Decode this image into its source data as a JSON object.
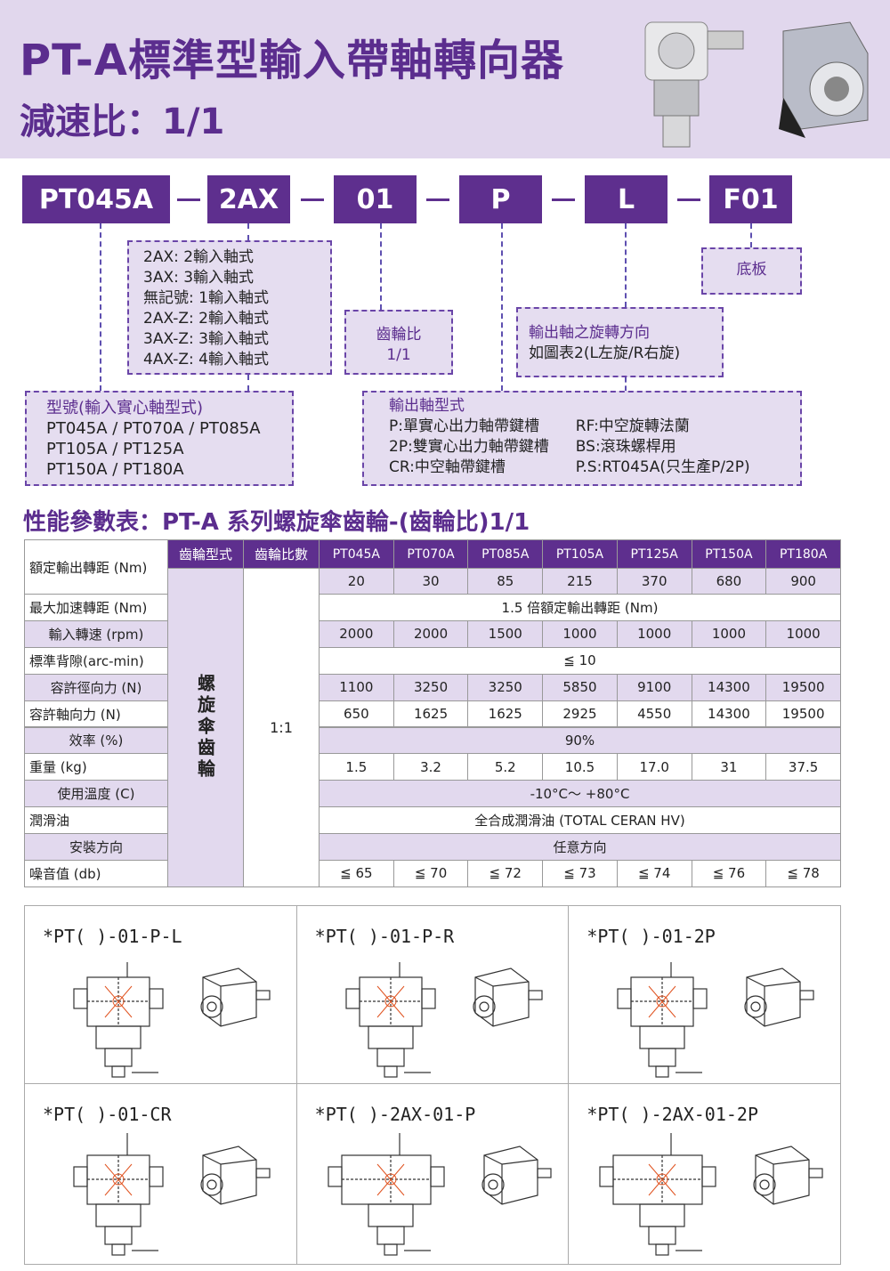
{
  "header": {
    "title": "PT-A標準型輸入帶軸轉向器",
    "subtitle": "減速比：1/1"
  },
  "code": [
    "PT045A",
    "2AX",
    "01",
    "P",
    "L",
    "F01"
  ],
  "notes": {
    "input": [
      "2AX: 2輸入軸式",
      "3AX: 3輸入軸式",
      "無記號: 1輸入軸式",
      "2AX-Z: 2輸入軸式",
      "3AX-Z: 3輸入軸式",
      "4AX-Z: 4輸入軸式"
    ],
    "ratio": {
      "title": "齒輪比",
      "value": "1/1"
    },
    "rotation": {
      "title": "輸出軸之旋轉方向",
      "text": "如圖表2(L左旋/R右旋)"
    },
    "base": "底板",
    "model": {
      "title": "型號(輸入實心軸型式)",
      "lines": [
        "PT045A / PT070A / PT085A",
        "PT105A / PT125A",
        "PT150A / PT180A"
      ]
    },
    "output": {
      "title": "輸出軸型式",
      "left": [
        "P:單實心出力軸帶鍵槽",
        "2P:雙實心出力軸帶鍵槽",
        "CR:中空軸帶鍵槽"
      ],
      "right": [
        "RF:中空旋轉法蘭",
        "BS:滾珠螺桿用",
        "P.S:RT045A(只生產P/2P)"
      ]
    }
  },
  "table": {
    "title": "性能參數表：PT-A 系列螺旋傘齒輪-(齒輪比)1/1",
    "header": [
      "齒輪型式",
      "齒輪比數"
    ],
    "models": [
      "PT045A",
      "PT070A",
      "PT085A",
      "PT105A",
      "PT125A",
      "PT150A",
      "PT180A"
    ],
    "gear_type": "螺旋傘齒輪",
    "ratio": "1:1",
    "rows": [
      {
        "label": "額定輸出轉距 (Nm)",
        "values": [
          "20",
          "30",
          "85",
          "215",
          "370",
          "680",
          "900"
        ]
      },
      {
        "label": "最大加速轉距 (Nm)",
        "text": "1.5 倍額定輸出轉距 (Nm)"
      },
      {
        "label": "輸入轉速 (rpm)",
        "values": [
          "2000",
          "2000",
          "1500",
          "1000",
          "1000",
          "1000",
          "1000"
        ]
      },
      {
        "label": "標準背隙(arc-min)",
        "text": "≦ 10"
      },
      {
        "label": "容許徑向力 (N)",
        "values": [
          "1100",
          "3250",
          "3250",
          "5850",
          "9100",
          "14300",
          "19500"
        ]
      },
      {
        "label": "容許軸向力 (N)",
        "values": [
          "650",
          "1625",
          "1625",
          "2925",
          "4550",
          "14300",
          "19500"
        ]
      },
      {
        "label": "效率 (%)",
        "text": "90%"
      },
      {
        "label": "重量 (kg)",
        "values": [
          "1.5",
          "3.2",
          "5.2",
          "10.5",
          "17.0",
          "31",
          "37.5"
        ]
      },
      {
        "label": "使用溫度 (C)",
        "text": "-10°C～ +80°C"
      },
      {
        "label": "潤滑油",
        "text": "全合成潤滑油 (TOTAL CERAN HV)"
      },
      {
        "label": "安裝方向",
        "text": "任意方向"
      },
      {
        "label": "噪音值 (db)",
        "values": [
          "≦ 65",
          "≦ 70",
          "≦ 72",
          "≦ 73",
          "≦ 74",
          "≦ 76",
          "≦ 78"
        ]
      }
    ]
  },
  "diagrams": [
    "*PT( )-01-P-L",
    "*PT( )-01-P-R",
    "*PT( )-01-2P",
    "*PT( )-01-CR",
    "*PT( )-2AX-01-P",
    "*PT( )-2AX-01-2P"
  ]
}
